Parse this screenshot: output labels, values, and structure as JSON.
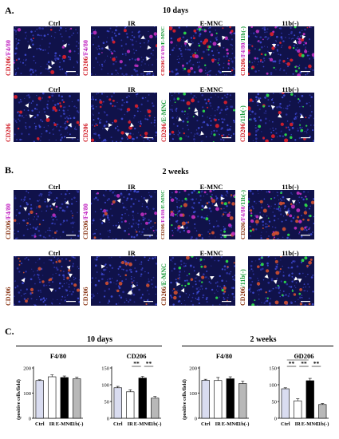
{
  "panelA": {
    "letter": "A.",
    "title": "10 days",
    "cols": [
      "Ctrl",
      "IR",
      "E-MNC",
      "11b(-)"
    ],
    "row1_side": [
      {
        "parts": [
          [
            "CD206",
            "red"
          ],
          [
            "/",
            "mag"
          ],
          [
            "F4/80",
            "mag"
          ]
        ]
      },
      {
        "parts": [
          [
            "CD206",
            "red"
          ],
          [
            "/",
            "mag"
          ],
          [
            "F4/80",
            "mag"
          ]
        ]
      },
      {
        "parts": [
          [
            "CD206",
            "red"
          ],
          [
            "/",
            "mag"
          ],
          [
            "F4/80",
            "mag"
          ],
          [
            "/",
            "grn"
          ],
          [
            "E-MNC",
            "grn"
          ]
        ]
      },
      {
        "parts": [
          [
            "CD206",
            "red"
          ],
          [
            "/",
            "mag"
          ],
          [
            "F4/80",
            "mag"
          ],
          [
            "/",
            "grn"
          ],
          [
            "11b(-)",
            "grn"
          ]
        ]
      }
    ],
    "row2_side": [
      {
        "parts": [
          [
            "CD206",
            "red"
          ]
        ]
      },
      {
        "parts": [
          [
            "CD206",
            "red"
          ]
        ]
      },
      {
        "parts": [
          [
            "CD206",
            "red"
          ],
          [
            "/",
            "grn"
          ],
          [
            "E-MNC",
            "grn"
          ]
        ]
      },
      {
        "parts": [
          [
            "CD206",
            "red"
          ],
          [
            "/",
            "grn"
          ],
          [
            "11b(-)",
            "grn"
          ]
        ]
      }
    ]
  },
  "panelB": {
    "letter": "B.",
    "title": "2 weeks",
    "cols": [
      "Ctrl",
      "IR",
      "E-MNC",
      "11b(-)"
    ],
    "row1_side": [
      {
        "parts": [
          [
            "CD206",
            "brn"
          ],
          [
            "/",
            "mag"
          ],
          [
            "F4/80",
            "mag"
          ]
        ]
      },
      {
        "parts": [
          [
            "CD206",
            "brn"
          ],
          [
            "/",
            "mag"
          ],
          [
            "F4/80",
            "mag"
          ]
        ]
      },
      {
        "parts": [
          [
            "CD206",
            "brn"
          ],
          [
            "/",
            "mag"
          ],
          [
            "F4/80",
            "mag"
          ],
          [
            "/",
            "grn"
          ],
          [
            "E-MNC",
            "grn"
          ]
        ]
      },
      {
        "parts": [
          [
            "CD206",
            "brn"
          ],
          [
            "/",
            "mag"
          ],
          [
            "F4/80",
            "mag"
          ],
          [
            "/",
            "grn"
          ],
          [
            "11b(-)",
            "grn"
          ]
        ]
      }
    ],
    "row2_side": [
      {
        "parts": [
          [
            "CD206",
            "brn"
          ]
        ]
      },
      {
        "parts": [
          [
            "CD206",
            "brn"
          ]
        ]
      },
      {
        "parts": [
          [
            "CD206",
            "brn"
          ],
          [
            "/",
            "grn"
          ],
          [
            "E-MNC",
            "grn"
          ]
        ]
      },
      {
        "parts": [
          [
            "CD206",
            "brn"
          ],
          [
            "/",
            "grn"
          ],
          [
            "11b(-)",
            "grn"
          ]
        ]
      }
    ]
  },
  "panelC": {
    "letter": "C.",
    "group_left": "10 days",
    "group_right": "2 weeks"
  },
  "chart_data": [
    {
      "type": "bar",
      "title": "F4/80",
      "ylabel": "(positive cells/field)",
      "categories": [
        "Ctrl",
        "IR",
        "E-MNC",
        "11b(-)"
      ],
      "values": [
        150,
        165,
        162,
        157
      ],
      "errors": [
        3,
        8,
        6,
        6
      ],
      "ylim": [
        0,
        200
      ],
      "yticks": [
        0,
        100,
        200
      ],
      "colors": [
        "#d9dcf0",
        "#ffffff",
        "#000000",
        "#b8b8b8"
      ],
      "sig": []
    },
    {
      "type": "bar",
      "title": "CD206",
      "ylabel": "",
      "categories": [
        "Ctrl",
        "IR",
        "E-MNC",
        "11b(-)"
      ],
      "values": [
        91,
        79,
        120,
        60
      ],
      "errors": [
        4,
        6,
        5,
        5
      ],
      "ylim": [
        0,
        150
      ],
      "yticks": [
        0,
        50,
        100,
        150
      ],
      "colors": [
        "#d9dcf0",
        "#ffffff",
        "#000000",
        "#b8b8b8"
      ],
      "sig": [
        {
          "from": 1,
          "to": 2,
          "label": "**",
          "level": 0
        },
        {
          "from": 2,
          "to": 3,
          "label": "**",
          "level": 0
        }
      ]
    },
    {
      "type": "bar",
      "title": "F4/80",
      "ylabel": "(positive cells/field)",
      "categories": [
        "Ctrl",
        "IR",
        "E-MNC",
        "11b(-)"
      ],
      "values": [
        151,
        150,
        157,
        138
      ],
      "errors": [
        4,
        12,
        8,
        10
      ],
      "ylim": [
        0,
        200
      ],
      "yticks": [
        0,
        100,
        200
      ],
      "colors": [
        "#d9dcf0",
        "#ffffff",
        "#000000",
        "#b8b8b8"
      ],
      "sig": []
    },
    {
      "type": "bar",
      "title": "CD206",
      "ylabel": "",
      "categories": [
        "Ctrl",
        "IR",
        "E-MNC",
        "11b(-)"
      ],
      "values": [
        88,
        52,
        112,
        41
      ],
      "errors": [
        3,
        6,
        7,
        3
      ],
      "ylim": [
        0,
        150
      ],
      "yticks": [
        0,
        50,
        100,
        150
      ],
      "colors": [
        "#d9dcf0",
        "#ffffff",
        "#000000",
        "#b8b8b8"
      ],
      "sig": [
        {
          "from": 0,
          "to": 1,
          "label": "**",
          "level": 0
        },
        {
          "from": 1,
          "to": 2,
          "label": "**",
          "level": 0
        },
        {
          "from": 2,
          "to": 3,
          "label": "**",
          "level": 0
        },
        {
          "from": 0,
          "to": 2,
          "label": "*",
          "level": 1
        }
      ]
    }
  ]
}
